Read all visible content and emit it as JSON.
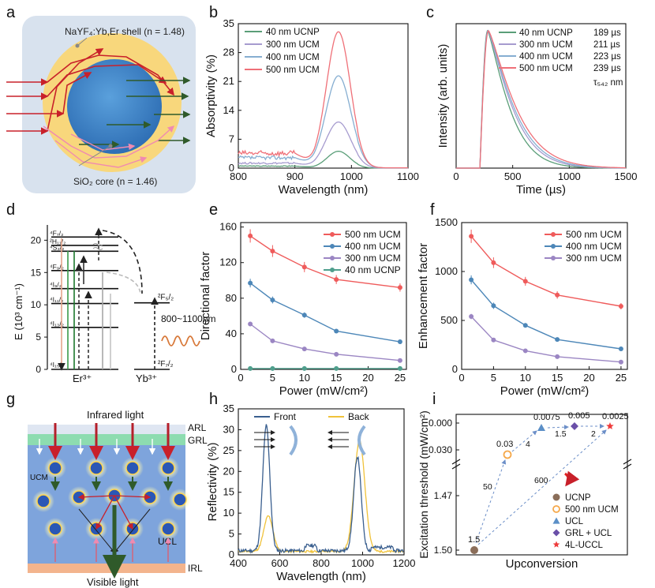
{
  "panel_letters": [
    "a",
    "b",
    "c",
    "d",
    "e",
    "f",
    "g",
    "h",
    "i"
  ],
  "panel_a": {
    "shell_label": "NaYF₄:Yb,Er shell (n = 1.48)",
    "core_label": "SiO₂ core (n = 1.46)"
  },
  "panel_d": {
    "ylabel": "E (10³ cm⁻¹)",
    "yticks": [
      0,
      5,
      10,
      15,
      20
    ],
    "er_levels": [
      {
        "label": "⁴F₇/₂",
        "e": 20.5
      },
      {
        "label": "²H₁₁/₂",
        "e": 19.2
      },
      {
        "label": "⁴S₃/₂",
        "e": 18.3
      },
      {
        "label": "⁴F₉/₂",
        "e": 15.3
      },
      {
        "label": "⁴I₉/₂",
        "e": 12.5
      },
      {
        "label": "⁴I₁₁/₂",
        "e": 10.2
      },
      {
        "label": "⁴I₁₃/₂",
        "e": 6.5
      },
      {
        "label": "⁴I₁₅/₂",
        "e": 0
      }
    ],
    "yb_levels": [
      {
        "label": "²F₅/₂",
        "e": 10.3
      },
      {
        "label": "²F₇/₂",
        "e": 0
      }
    ],
    "er_label": "Er³⁺",
    "yb_label": "Yb³⁺",
    "excitation_label": "800~1100nm"
  },
  "panel_g": {
    "infrared": "Infrared light",
    "visible": "Visible light",
    "layers": [
      "ARL",
      "GRL",
      "UCM",
      "UCL",
      "IRL"
    ]
  },
  "chart_data": [
    {
      "id": "b",
      "type": "line",
      "xlabel": "Wavelength (nm)",
      "ylabel": "Absorptivity (%)",
      "xlim": [
        800,
        1100
      ],
      "ylim": [
        0,
        35
      ],
      "xticks": [
        800,
        900,
        1000,
        1100
      ],
      "yticks": [
        0,
        7,
        14,
        21,
        28,
        35
      ],
      "legend_position": "top-left",
      "series": [
        {
          "name": "40 nm UCNP",
          "color": "#5a9e78",
          "baseline": 0.5,
          "peak": 4,
          "center": 977,
          "width": 20
        },
        {
          "name": "300 nm UCM",
          "color": "#a69bcf",
          "baseline": 1.2,
          "peak": 11,
          "center": 977,
          "width": 22
        },
        {
          "name": "400 nm UCM",
          "color": "#86aed1",
          "baseline": 2.5,
          "peak": 22,
          "center": 977,
          "width": 22
        },
        {
          "name": "500 nm UCM",
          "color": "#ef7078",
          "baseline": 3.6,
          "peak": 32.5,
          "center": 977,
          "width": 21
        }
      ]
    },
    {
      "id": "c",
      "type": "line",
      "xlabel": "Time (µs)",
      "ylabel": "Intensity (arb. units)",
      "xlim": [
        0,
        1500
      ],
      "ylim": [
        0,
        1.05
      ],
      "xticks": [
        0,
        500,
        1000,
        1500
      ],
      "yticks": [],
      "legend_position": "top-right",
      "annotation": "τ₅₄₂ nm",
      "series": [
        {
          "name": "40 nm UCNP",
          "color": "#5a9e78",
          "lifetime": "189 µs",
          "tau": 189
        },
        {
          "name": "300 nm UCM",
          "color": "#a69bcf",
          "lifetime": "211 µs",
          "tau": 211
        },
        {
          "name": "400 nm UCM",
          "color": "#86aed1",
          "lifetime": "223 µs",
          "tau": 223
        },
        {
          "name": "500 nm UCM",
          "color": "#ef7078",
          "lifetime": "239 µs",
          "tau": 239
        }
      ]
    },
    {
      "id": "e",
      "type": "line",
      "xlabel": "Power (mW/cm²)",
      "ylabel": "Directional factor",
      "xlim": [
        0,
        26
      ],
      "ylim": [
        0,
        165
      ],
      "xticks": [
        0,
        5,
        10,
        15,
        20,
        25
      ],
      "yticks": [
        0,
        40,
        80,
        120,
        160
      ],
      "legend_position": "top-right",
      "x": [
        1.5,
        5,
        10,
        15,
        25
      ],
      "series": [
        {
          "name": "500 nm UCM",
          "color": "#ef5b5b",
          "values": [
            150,
            133,
            115,
            101,
            92
          ]
        },
        {
          "name": "400 nm UCM",
          "color": "#4d87b8",
          "values": [
            97,
            78,
            61,
            43,
            31
          ]
        },
        {
          "name": "300 nm UCM",
          "color": "#9b86c3",
          "values": [
            51,
            32,
            23,
            17,
            10
          ]
        },
        {
          "name": "40 nm UCNP",
          "color": "#4f9f8d",
          "values": [
            1,
            1,
            1,
            1,
            1
          ]
        }
      ]
    },
    {
      "id": "f",
      "type": "line",
      "xlabel": "Power (mW/cm²)",
      "ylabel": "Enhancement factor",
      "xlim": [
        0,
        26
      ],
      "ylim": [
        0,
        1500
      ],
      "xticks": [
        0,
        5,
        10,
        15,
        20,
        25
      ],
      "yticks": [
        0,
        500,
        1000,
        1500
      ],
      "legend_position": "top-right",
      "x": [
        1.5,
        5,
        10,
        15,
        25
      ],
      "series": [
        {
          "name": "500 nm UCM",
          "color": "#ef5b5b",
          "values": [
            1360,
            1090,
            900,
            760,
            645
          ]
        },
        {
          "name": "400 nm UCM",
          "color": "#4d87b8",
          "values": [
            915,
            650,
            450,
            305,
            210
          ]
        },
        {
          "name": "300 nm UCM",
          "color": "#9b86c3",
          "values": [
            540,
            300,
            190,
            130,
            75
          ]
        }
      ]
    },
    {
      "id": "h",
      "type": "line",
      "xlabel": "Wavelength (nm)",
      "ylabel": "Reflectivity (%)",
      "xlim": [
        400,
        1200
      ],
      "ylim": [
        0,
        35
      ],
      "xticks": [
        400,
        600,
        800,
        1000,
        1200
      ],
      "yticks": [
        0,
        5,
        10,
        15,
        20,
        25,
        30,
        35
      ],
      "legend_position": "top-center",
      "series": [
        {
          "name": "Front",
          "color": "#3a5f8f"
        },
        {
          "name": "Back",
          "color": "#f0c23a"
        }
      ]
    },
    {
      "id": "i",
      "type": "scatter",
      "xlabel": "Upconversion",
      "ylabel": "Excitation threshold (mW/cm²)",
      "yticks": [
        "0.000",
        "0.030",
        "1.47",
        "1.50"
      ],
      "legend_position": "bottom-right",
      "points": [
        {
          "name": "UCNP",
          "value": "1.5",
          "color": "#8b6e5a",
          "marker": "circle"
        },
        {
          "name": "500 nm UCM",
          "value": "0.03",
          "color": "#f5a84a",
          "marker": "ring"
        },
        {
          "name": "UCL",
          "value": "0.0075",
          "color": "#5b8fc7",
          "marker": "triangle"
        },
        {
          "name": "GRL + UCL",
          "value": "0.005",
          "color": "#6a4fa8",
          "marker": "diamond"
        },
        {
          "name": "4L-UCCL",
          "value": "0.0025",
          "color": "#ee3b3b",
          "marker": "star"
        }
      ],
      "arrow_labels": [
        "50",
        "4",
        "1.5",
        "2",
        "600"
      ]
    }
  ]
}
